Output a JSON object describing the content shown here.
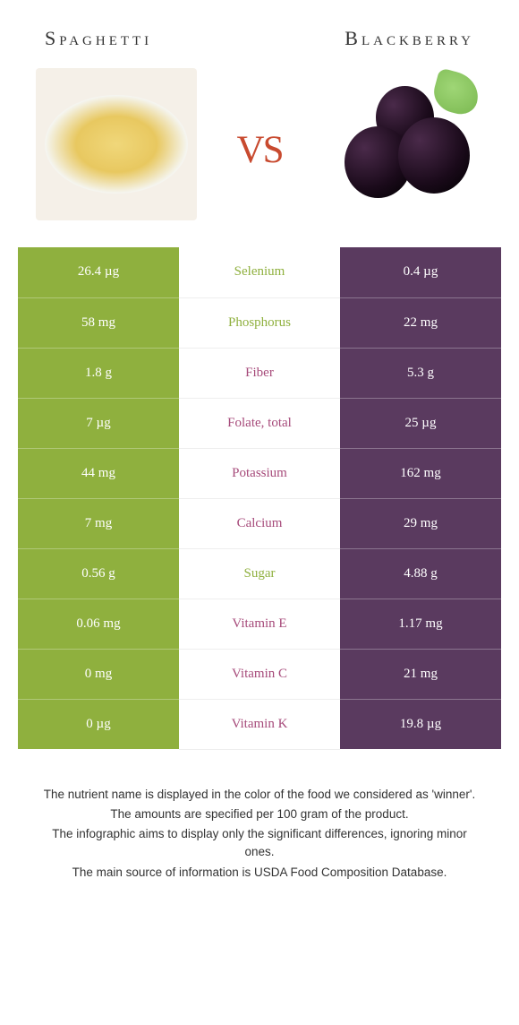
{
  "food_left": {
    "name": "Spaghetti",
    "color": "#8fb03e"
  },
  "food_right": {
    "name": "Blackberry",
    "color": "#5a3a5f"
  },
  "vs_label": "vs",
  "rows": [
    {
      "left": "26.4 µg",
      "nutrient": "Selenium",
      "right": "0.4 µg",
      "winner": "left"
    },
    {
      "left": "58 mg",
      "nutrient": "Phosphorus",
      "right": "22 mg",
      "winner": "left"
    },
    {
      "left": "1.8 g",
      "nutrient": "Fiber",
      "right": "5.3 g",
      "winner": "right"
    },
    {
      "left": "7 µg",
      "nutrient": "Folate, total",
      "right": "25 µg",
      "winner": "right"
    },
    {
      "left": "44 mg",
      "nutrient": "Potassium",
      "right": "162 mg",
      "winner": "right"
    },
    {
      "left": "7 mg",
      "nutrient": "Calcium",
      "right": "29 mg",
      "winner": "right"
    },
    {
      "left": "0.56 g",
      "nutrient": "Sugar",
      "right": "4.88 g",
      "winner": "left"
    },
    {
      "left": "0.06 mg",
      "nutrient": "Vitamin E",
      "right": "1.17 mg",
      "winner": "right"
    },
    {
      "left": "0 mg",
      "nutrient": "Vitamin C",
      "right": "21 mg",
      "winner": "right"
    },
    {
      "left": "0 µg",
      "nutrient": "Vitamin K",
      "right": "19.8 µg",
      "winner": "right"
    }
  ],
  "footer": {
    "line1": "The nutrient name is displayed in the color of the food we considered as 'winner'.",
    "line2": "The amounts are specified per 100 gram of the product.",
    "line3": "The infographic aims to display only the significant differences, ignoring minor ones.",
    "line4": "The main source of information is USDA Food Composition Database."
  }
}
